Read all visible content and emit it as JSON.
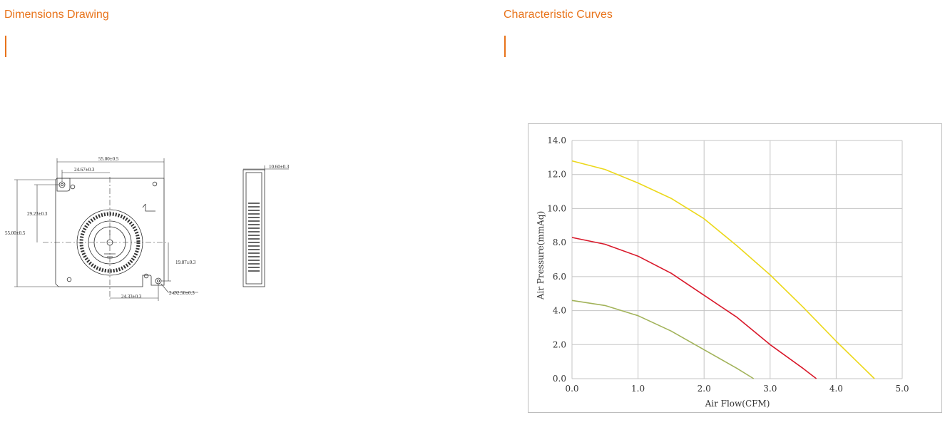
{
  "sections": {
    "left_title": "Dimensions Drawing",
    "right_title": "Characteristic Curves"
  },
  "colors": {
    "accent": "#e8731a",
    "grid": "#c4c4c4",
    "series_yellow": "#ecd81a",
    "series_red": "#d9182a",
    "series_green": "#a2b35a"
  },
  "drawing_labels": {
    "width_total": "55.00±0.5",
    "hole_x_top": "24.67±0.3",
    "hole_y_left": "29.23±0.3",
    "height_total": "55.00±0.5",
    "hole_y_right": "19.87±0.3",
    "hole_x_bottom": "24.33±0.3",
    "hole_diameter": "2-Ø2.50±0.3",
    "thickness": "10.60±0.3"
  },
  "chart_data": {
    "type": "line",
    "title": "",
    "xlabel": "Air Flow(CFM)",
    "ylabel": "Air Pressure(mmAq)",
    "xlim": [
      0,
      5
    ],
    "ylim": [
      0,
      14
    ],
    "x_ticks": [
      "0.0",
      "1.0",
      "2.0",
      "3.0",
      "4.0",
      "5.0"
    ],
    "y_ticks": [
      "0.0",
      "2.0",
      "4.0",
      "6.0",
      "8.0",
      "10.0",
      "12.0",
      "14.0"
    ],
    "grid": true,
    "legend": "none",
    "series": [
      {
        "color": "#ecd81a",
        "x": [
          0,
          0.5,
          1.0,
          1.5,
          2.0,
          2.5,
          3.0,
          3.5,
          4.0,
          4.58
        ],
        "y": [
          12.8,
          12.3,
          11.5,
          10.6,
          9.4,
          7.8,
          6.1,
          4.2,
          2.2,
          0.0
        ]
      },
      {
        "color": "#d9182a",
        "x": [
          0,
          0.5,
          1.0,
          1.5,
          2.0,
          2.5,
          3.0,
          3.5,
          3.7
        ],
        "y": [
          8.3,
          7.9,
          7.2,
          6.2,
          4.9,
          3.6,
          2.0,
          0.6,
          0.0
        ]
      },
      {
        "color": "#a2b35a",
        "x": [
          0,
          0.5,
          1.0,
          1.5,
          2.0,
          2.5,
          2.75
        ],
        "y": [
          4.6,
          4.3,
          3.7,
          2.8,
          1.7,
          0.6,
          0.0
        ]
      }
    ]
  }
}
